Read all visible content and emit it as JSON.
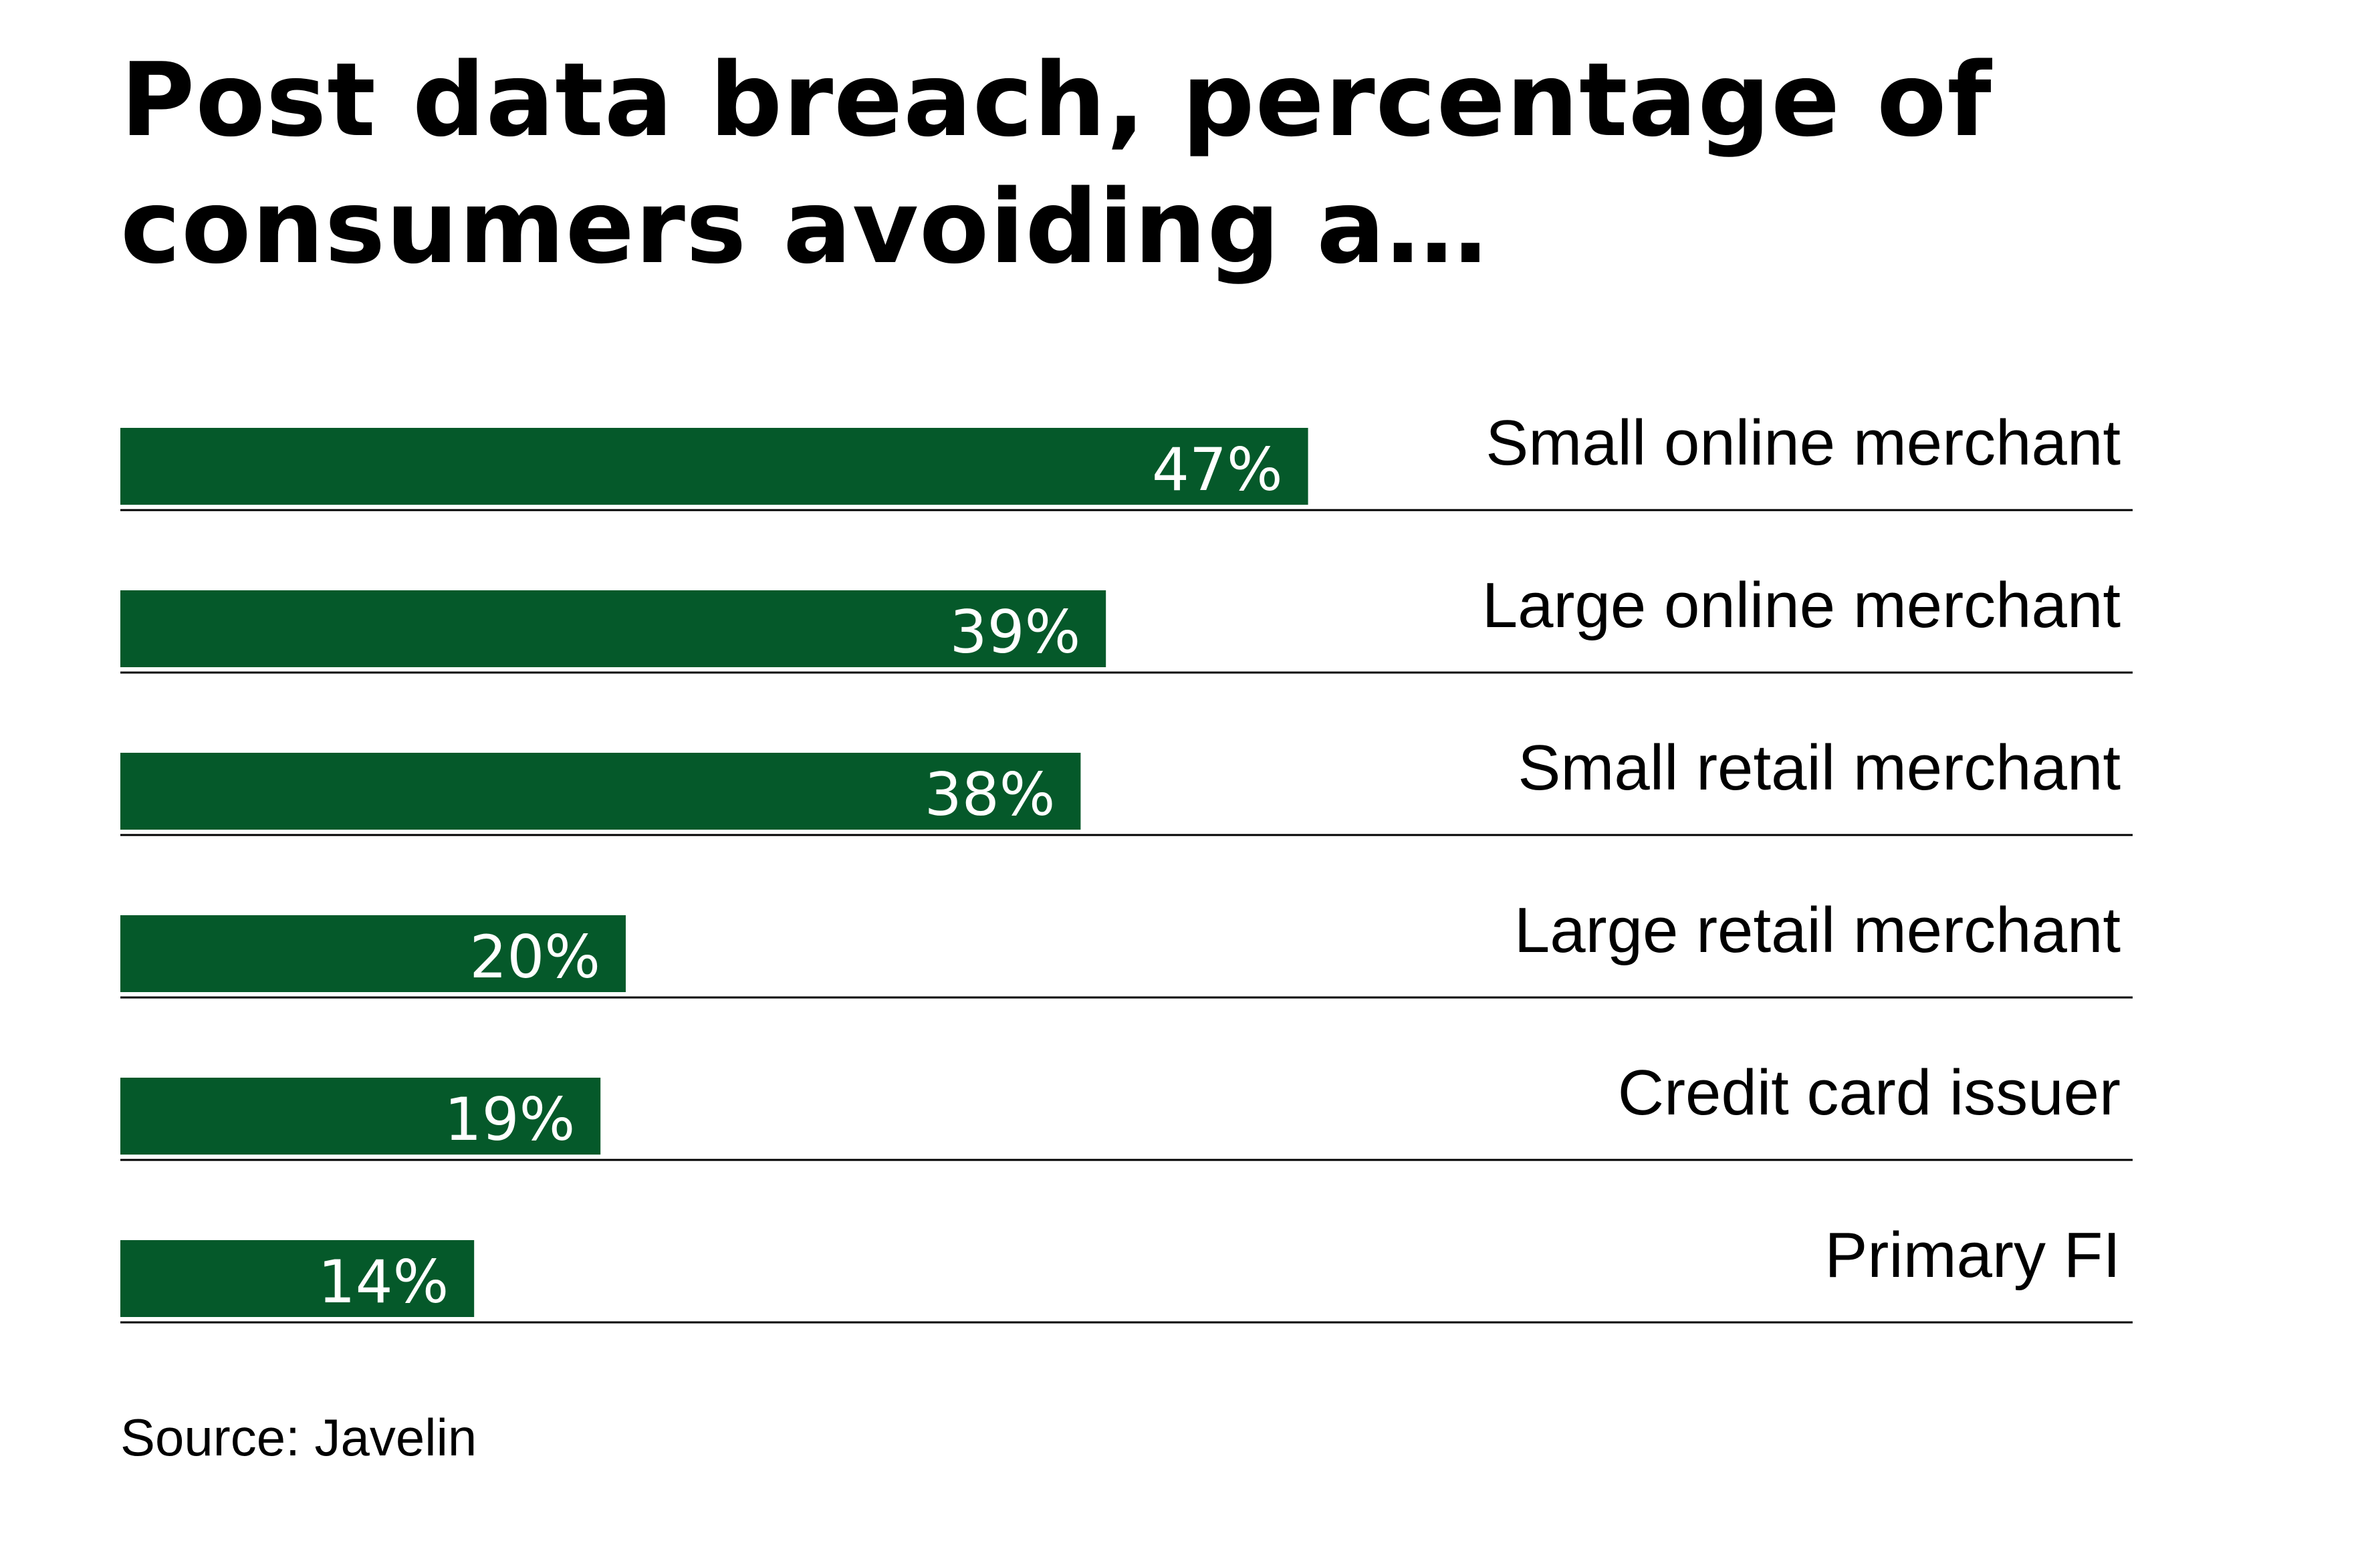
{
  "chart_data": {
    "type": "bar",
    "orientation": "horizontal",
    "title": "Post data breach, percentage of consumers avoiding a…",
    "categories": [
      "Small online merchant",
      "Large online merchant",
      "Small retail merchant",
      "Large retail merchant",
      "Credit card issuer",
      "Primary FI"
    ],
    "values": [
      47,
      39,
      38,
      20,
      19,
      14
    ],
    "value_labels": [
      "47%",
      "39%",
      "38%",
      "20%",
      "19%",
      "14%"
    ],
    "unit": "%",
    "xlim": [
      0,
      100
    ],
    "grid": false,
    "legend": "none",
    "bar_color": "#05592a",
    "label_color": "#ffffff",
    "source": "Source: Javelin"
  }
}
